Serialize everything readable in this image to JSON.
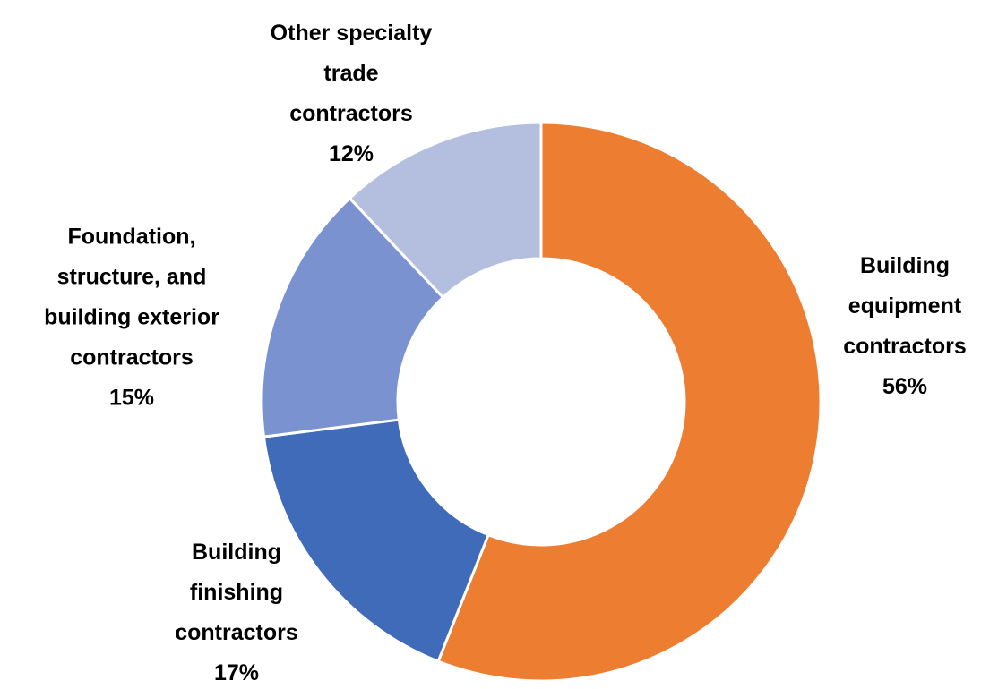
{
  "chart_data": {
    "type": "donut",
    "categories": [
      "Building\nequipment\ncontractors",
      "Building\nfinishing\ncontractors",
      "Foundation,\nstructure, and\nbuilding exterior\ncontractors",
      "Other specialty\ntrade\ncontractors"
    ],
    "values": [
      56,
      17,
      15,
      12
    ],
    "value_labels": [
      "56%",
      "17%",
      "15%",
      "12%"
    ],
    "colors": [
      "#ED7D31",
      "#3F6BB8",
      "#7A92D0",
      "#B4BFE0"
    ]
  }
}
